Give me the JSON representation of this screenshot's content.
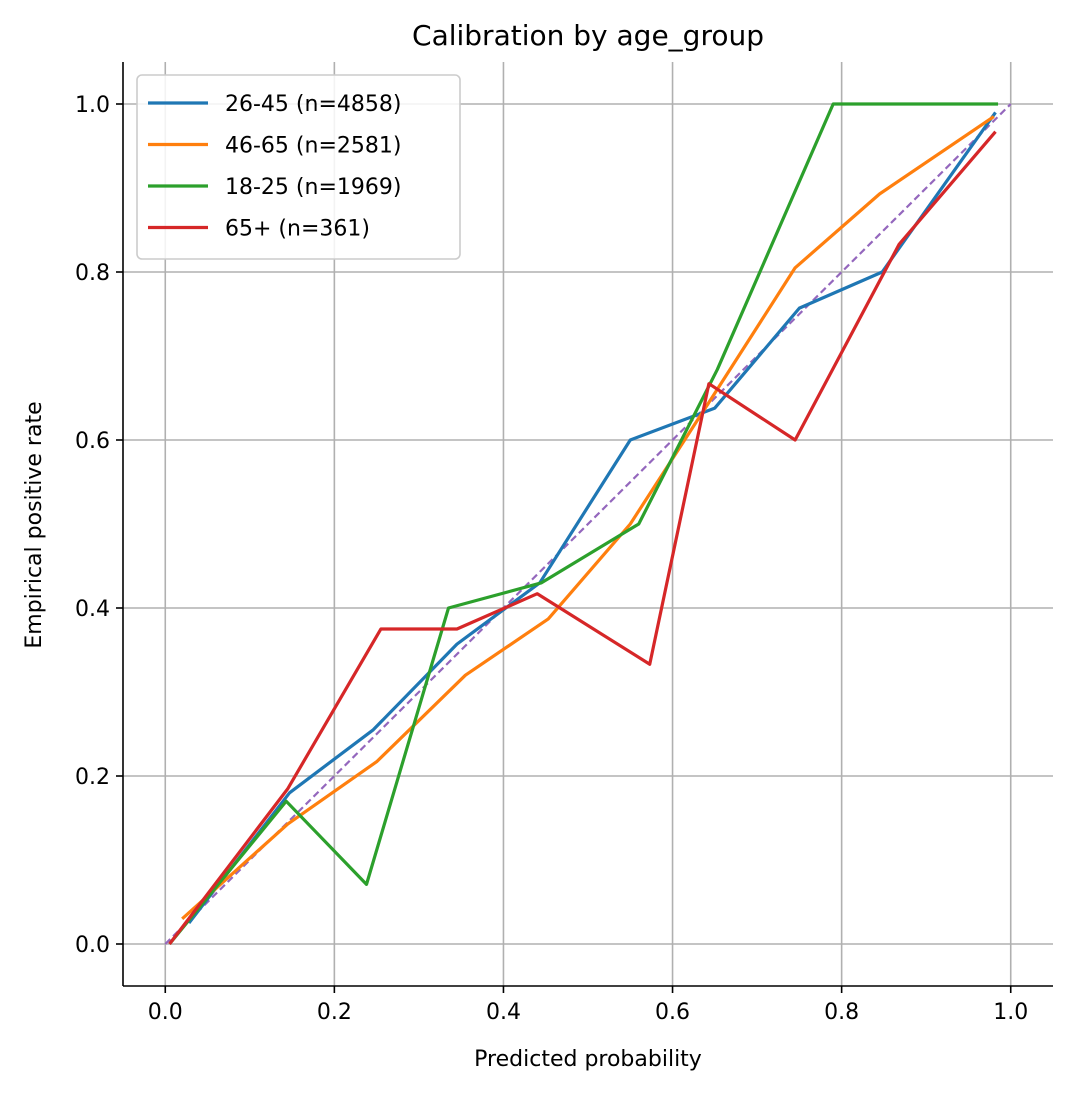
{
  "chart_data": {
    "type": "line",
    "title": "Calibration by age_group",
    "xlabel": "Predicted probability",
    "ylabel": "Empirical positive rate",
    "xlim": [
      -0.05,
      1.05
    ],
    "ylim": [
      -0.05,
      1.05
    ],
    "xticks": [
      0.0,
      0.2,
      0.4,
      0.6,
      0.8,
      1.0
    ],
    "yticks": [
      0.0,
      0.2,
      0.4,
      0.6,
      0.8,
      1.0
    ],
    "xtick_labels": [
      "0.0",
      "0.2",
      "0.4",
      "0.6",
      "0.8",
      "1.0"
    ],
    "ytick_labels": [
      "0.0",
      "0.2",
      "0.4",
      "0.6",
      "0.8",
      "1.0"
    ],
    "grid": true,
    "legend_position": "top-left",
    "series": [
      {
        "name": "26-45 (n=4858)",
        "color": "#1f77b4",
        "x": [
          0.028,
          0.147,
          0.246,
          0.345,
          0.443,
          0.55,
          0.65,
          0.75,
          0.848,
          0.982
        ],
        "y": [
          0.025,
          0.18,
          0.255,
          0.357,
          0.43,
          0.6,
          0.638,
          0.757,
          0.8,
          0.99
        ]
      },
      {
        "name": "46-65 (n=2581)",
        "color": "#ff7f0e",
        "x": [
          0.02,
          0.145,
          0.25,
          0.355,
          0.453,
          0.55,
          0.64,
          0.745,
          0.845,
          0.98
        ],
        "y": [
          0.03,
          0.143,
          0.217,
          0.32,
          0.387,
          0.5,
          0.64,
          0.805,
          0.893,
          0.985
        ]
      },
      {
        "name": "18-25 (n=1969)",
        "color": "#2ca02c",
        "x": [
          0.005,
          0.143,
          0.238,
          0.335,
          0.445,
          0.56,
          0.653,
          0.79,
          0.985
        ],
        "y": [
          0.0,
          0.17,
          0.071,
          0.4,
          0.43,
          0.5,
          0.684,
          1.0,
          1.0
        ]
      },
      {
        "name": "65+ (n=361)",
        "color": "#d62728",
        "x": [
          0.005,
          0.145,
          0.255,
          0.345,
          0.44,
          0.573,
          0.643,
          0.745,
          0.868,
          0.982
        ],
        "y": [
          0.0,
          0.185,
          0.375,
          0.375,
          0.417,
          0.333,
          0.667,
          0.6,
          0.833,
          0.967
        ]
      }
    ],
    "reference_line": {
      "color": "#9467bd",
      "x": [
        0.0,
        1.0
      ],
      "y": [
        0.0,
        1.0
      ]
    }
  }
}
